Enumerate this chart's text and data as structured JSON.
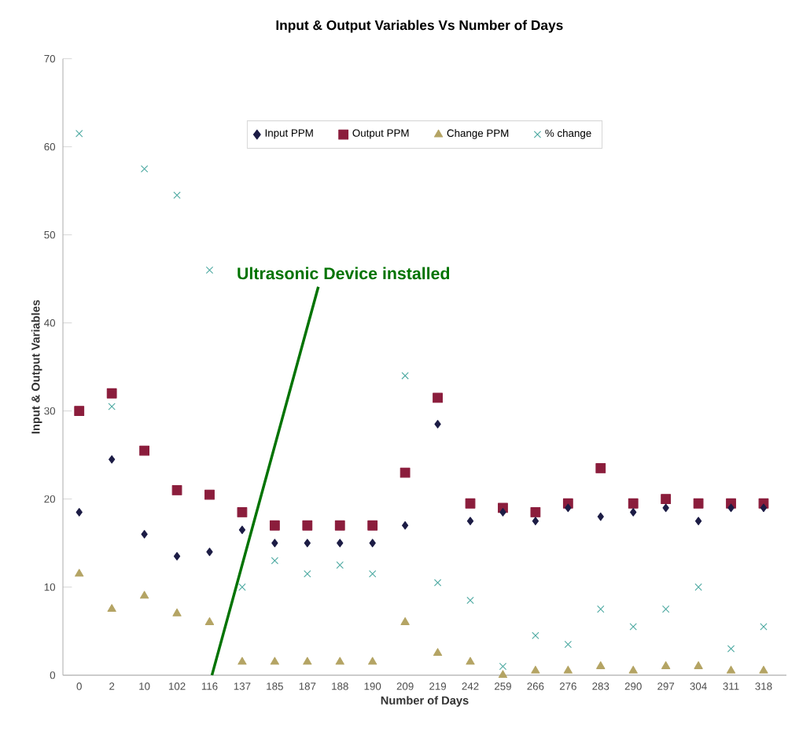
{
  "chart_data": {
    "type": "scatter",
    "title": "Input & Output Variables Vs Number of Days",
    "xlabel": "Number of Days",
    "ylabel": "Input & Output Variables",
    "categories": [
      "0",
      "2",
      "10",
      "102",
      "116",
      "137",
      "185",
      "187",
      "188",
      "190",
      "209",
      "219",
      "242",
      "259",
      "266",
      "276",
      "283",
      "290",
      "297",
      "304",
      "311",
      "318"
    ],
    "series": [
      {
        "name": "Input PPM",
        "color": "#1c1c45",
        "marker": "diamond",
        "values": [
          18.5,
          24.5,
          16,
          13.5,
          14,
          16.5,
          15,
          15,
          15,
          15,
          17,
          28.5,
          17.5,
          18.5,
          17.5,
          19,
          18,
          18.5,
          19,
          17.5,
          19,
          19
        ]
      },
      {
        "name": "Output PPM",
        "color": "#8b1d3c",
        "marker": "square",
        "values": [
          30,
          32,
          25.5,
          21,
          20.5,
          18.5,
          17,
          17,
          17,
          17,
          23,
          31.5,
          19.5,
          19,
          18.5,
          19.5,
          23.5,
          19.5,
          20,
          19.5,
          19.5,
          19.5
        ]
      },
      {
        "name": "Change PPM",
        "color": "#b4a464",
        "marker": "triangle",
        "values": [
          11.5,
          7.5,
          9,
          7,
          6,
          1.5,
          1.5,
          1.5,
          1.5,
          1.5,
          6,
          2.5,
          1.5,
          0,
          0.5,
          0.5,
          1,
          0.5,
          1,
          1,
          0.5,
          0.5
        ]
      },
      {
        "name": "% change",
        "color": "#4aa8a0",
        "marker": "cross",
        "values": [
          61.5,
          30.5,
          57.5,
          54.5,
          46,
          10,
          13,
          11.5,
          12.5,
          11.5,
          34,
          10.5,
          8.5,
          1,
          4.5,
          3.5,
          7.5,
          5.5,
          7.5,
          10,
          3,
          5.5
        ]
      }
    ],
    "ylim": [
      0,
      70
    ],
    "yticks": [
      0,
      10,
      20,
      30,
      40,
      50,
      60,
      70
    ],
    "grid": false,
    "legend": "top",
    "annotations": [
      "Ultrasonic Device installed"
    ]
  }
}
